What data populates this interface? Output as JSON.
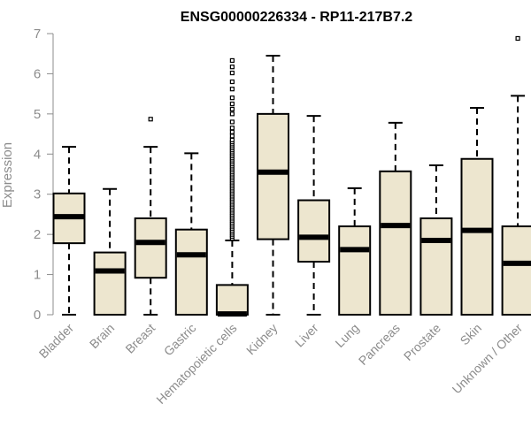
{
  "chart_data": {
    "type": "boxplot",
    "title": "ENSG00000226334 - RP11-217B7.2",
    "xlabel": "",
    "ylabel": "Expression",
    "ylim": [
      0,
      7
    ],
    "yticks": [
      "0",
      "1",
      "2",
      "3",
      "4",
      "5",
      "6",
      "7"
    ],
    "box_fill": "#ede6cf",
    "box_stroke": "#000000",
    "categories": [
      "Bladder",
      "Brain",
      "Breast",
      "Gastric",
      "Hematopoietic cells",
      "Kidney",
      "Liver",
      "Lung",
      "Pancreas",
      "Prostate",
      "Skin",
      "Unknown / Other"
    ],
    "boxes": [
      {
        "category": "Bladder",
        "min": 0,
        "q1": 1.78,
        "median": 2.44,
        "q3": 3.02,
        "max": 4.18,
        "outliers": []
      },
      {
        "category": "Brain",
        "min": 0,
        "q1": 0,
        "median": 1.09,
        "q3": 1.55,
        "max": 3.13,
        "outliers": []
      },
      {
        "category": "Breast",
        "min": 0,
        "q1": 0.92,
        "median": 1.8,
        "q3": 2.4,
        "max": 4.18,
        "outliers": [
          4.87
        ]
      },
      {
        "category": "Gastric",
        "min": 0,
        "q1": 0,
        "median": 1.49,
        "q3": 2.12,
        "max": 4.02,
        "outliers": []
      },
      {
        "category": "Hematopoietic cells",
        "min": 0,
        "q1": 0,
        "median": 0.02,
        "q3": 0.74,
        "max": 1.85,
        "outliers": [
          1.9,
          1.95,
          2.0,
          2.05,
          2.1,
          2.15,
          2.2,
          2.25,
          2.3,
          2.35,
          2.4,
          2.45,
          2.5,
          2.55,
          2.6,
          2.65,
          2.7,
          2.75,
          2.8,
          2.85,
          2.9,
          2.95,
          3.0,
          3.05,
          3.1,
          3.15,
          3.2,
          3.25,
          3.3,
          3.35,
          3.4,
          3.45,
          3.5,
          3.55,
          3.6,
          3.65,
          3.7,
          3.75,
          3.8,
          3.85,
          3.9,
          3.95,
          4.0,
          4.05,
          4.1,
          4.15,
          4.2,
          4.25,
          4.3,
          4.35,
          4.45,
          4.55,
          4.65,
          4.8,
          5.0,
          5.12,
          5.25,
          5.4,
          5.62,
          5.8,
          6.02,
          6.17,
          6.33
        ]
      },
      {
        "category": "Kidney",
        "min": 0,
        "q1": 1.88,
        "median": 3.55,
        "q3": 5.0,
        "max": 6.45,
        "outliers": []
      },
      {
        "category": "Liver",
        "min": 0,
        "q1": 1.32,
        "median": 1.93,
        "q3": 2.85,
        "max": 4.95,
        "outliers": []
      },
      {
        "category": "Lung",
        "min": 0,
        "q1": 0,
        "median": 1.62,
        "q3": 2.2,
        "max": 3.15,
        "outliers": []
      },
      {
        "category": "Pancreas",
        "min": 0,
        "q1": 0,
        "median": 2.22,
        "q3": 3.57,
        "max": 4.78,
        "outliers": []
      },
      {
        "category": "Prostate",
        "min": 0,
        "q1": 0,
        "median": 1.85,
        "q3": 2.4,
        "max": 3.72,
        "outliers": []
      },
      {
        "category": "Skin",
        "min": 0,
        "q1": 0,
        "median": 2.1,
        "q3": 3.88,
        "max": 5.15,
        "outliers": []
      },
      {
        "category": "Unknown / Other",
        "min": 0,
        "q1": 0,
        "median": 1.28,
        "q3": 2.2,
        "max": 5.45,
        "outliers": [
          6.88
        ]
      }
    ]
  }
}
